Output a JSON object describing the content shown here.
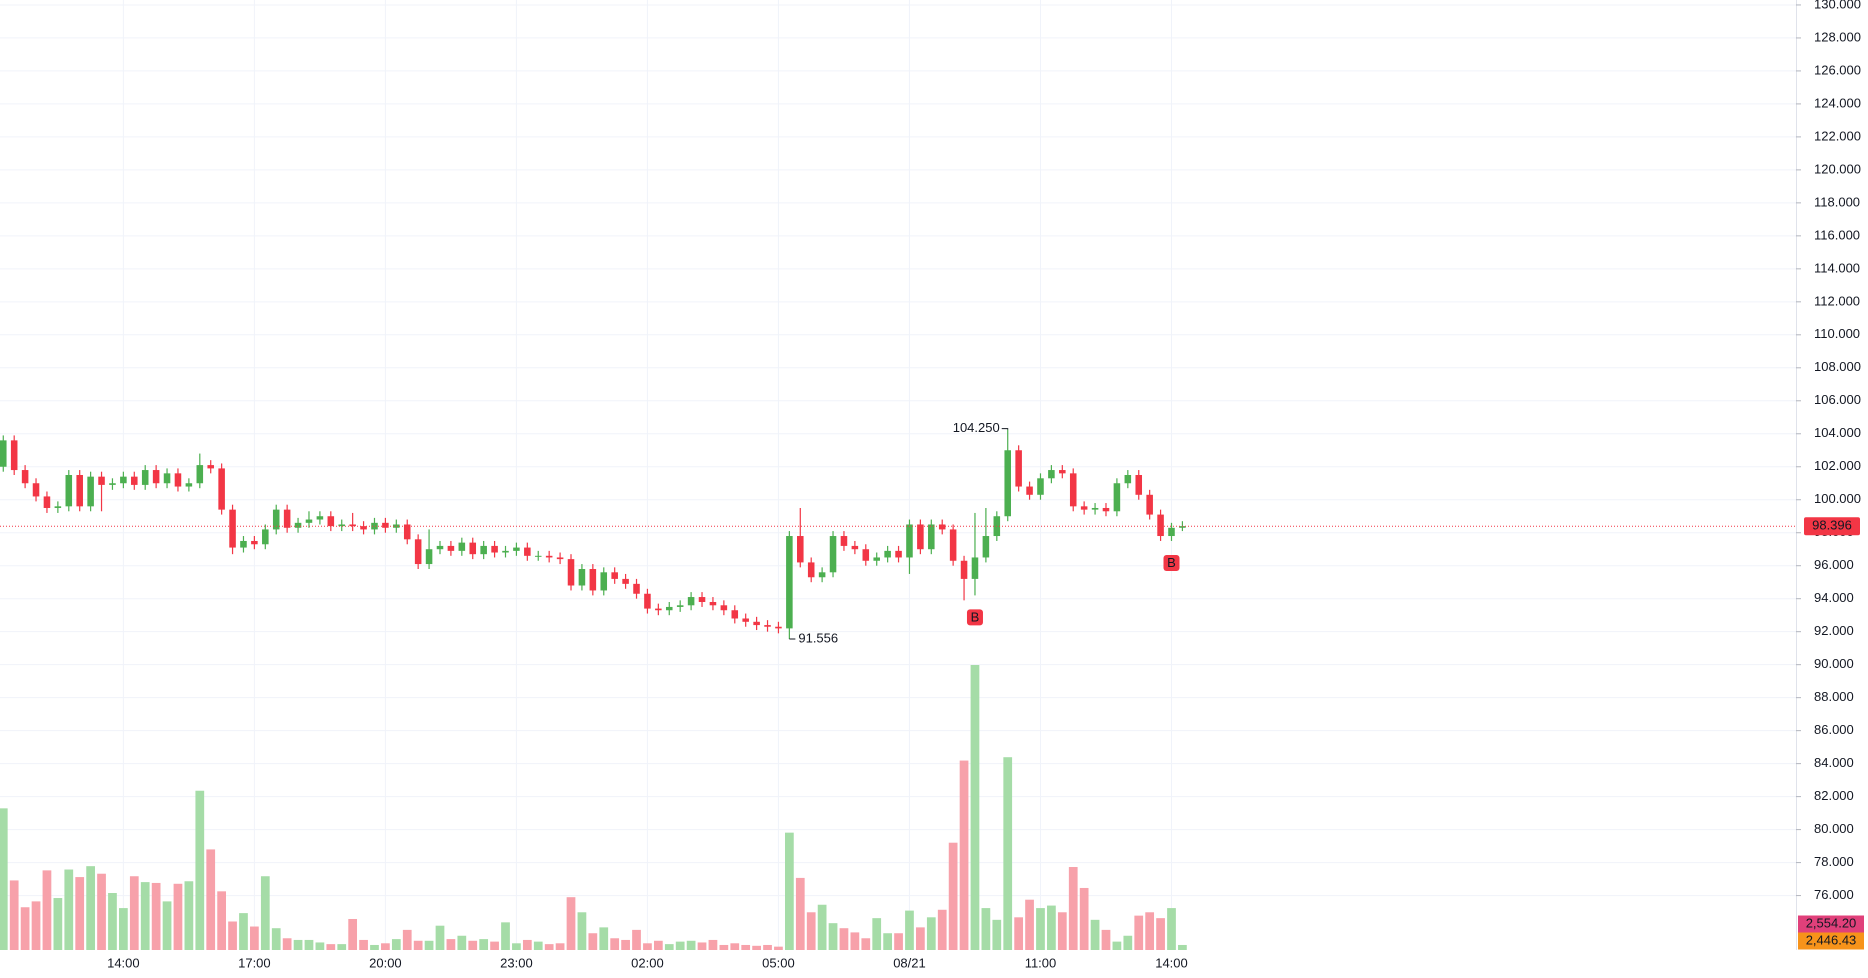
{
  "chart_data": {
    "type": "candlestick",
    "open": [
      102.0,
      103.6,
      101.8,
      101.0,
      100.2,
      99.5,
      99.6,
      101.5,
      99.6,
      101.4,
      100.9,
      101.0,
      101.4,
      100.9,
      101.8,
      101.0,
      101.6,
      100.8,
      101.0,
      102.1,
      101.9,
      99.4,
      97.1,
      97.5,
      97.3,
      98.2,
      99.4,
      98.3,
      98.6,
      98.8,
      99.0,
      98.4,
      98.5,
      98.4,
      98.2,
      98.6,
      98.3,
      98.5,
      97.6,
      96.1,
      97.0,
      97.2,
      96.9,
      97.4,
      96.7,
      97.2,
      96.8,
      96.9,
      97.1,
      96.6,
      96.6,
      96.5,
      96.4,
      94.8,
      95.8,
      94.5,
      95.6,
      95.2,
      94.9,
      94.3,
      93.4,
      93.3,
      93.5,
      93.6,
      94.1,
      93.8,
      93.6,
      93.3,
      92.8,
      92.6,
      92.4,
      92.3,
      92.2,
      97.8,
      96.2,
      95.3,
      95.6,
      97.8,
      97.2,
      97.0,
      96.3,
      96.5,
      96.9,
      96.5,
      98.5,
      97.0,
      98.5,
      98.2,
      96.3,
      95.2,
      96.5,
      97.8,
      99.0,
      103.0,
      100.8,
      100.3,
      101.3,
      101.8,
      101.6,
      99.6,
      99.4,
      99.5,
      99.3,
      101.0,
      101.5,
      100.3,
      99.1,
      97.8,
      98.3
    ],
    "high": [
      103.9,
      103.9,
      102.1,
      101.3,
      100.5,
      99.9,
      101.8,
      101.8,
      101.7,
      101.7,
      101.3,
      101.7,
      101.7,
      102.1,
      102.1,
      101.9,
      101.9,
      101.3,
      102.8,
      102.4,
      102.2,
      99.7,
      97.8,
      97.8,
      98.5,
      99.7,
      99.7,
      98.9,
      99.3,
      99.3,
      99.3,
      98.8,
      99.2,
      98.7,
      98.9,
      98.9,
      98.8,
      98.8,
      97.9,
      98.2,
      97.5,
      97.5,
      97.7,
      97.7,
      97.5,
      97.5,
      97.2,
      97.4,
      97.4,
      96.9,
      96.9,
      96.8,
      96.7,
      96.1,
      96.1,
      95.9,
      95.9,
      95.5,
      95.2,
      94.6,
      93.7,
      93.8,
      93.9,
      94.4,
      94.4,
      94.1,
      93.9,
      93.6,
      93.1,
      92.9,
      92.7,
      92.6,
      98.1,
      99.5,
      96.5,
      95.9,
      98.1,
      98.1,
      97.5,
      97.3,
      96.8,
      97.2,
      97.2,
      98.8,
      98.8,
      98.8,
      98.8,
      98.5,
      96.6,
      99.2,
      99.5,
      99.3,
      104.25,
      103.3,
      101.1,
      101.6,
      102.1,
      102.1,
      101.9,
      99.9,
      99.8,
      99.8,
      101.3,
      101.8,
      101.8,
      100.6,
      99.4,
      98.6,
      98.7
    ],
    "low": [
      101.7,
      101.5,
      100.7,
      99.9,
      99.2,
      99.2,
      99.3,
      99.3,
      99.3,
      99.3,
      100.6,
      100.7,
      100.6,
      100.6,
      100.7,
      100.7,
      100.5,
      100.5,
      100.7,
      101.6,
      99.1,
      96.7,
      96.8,
      97.0,
      97.0,
      97.9,
      98.0,
      98.0,
      98.3,
      98.5,
      98.1,
      98.1,
      98.1,
      97.9,
      97.9,
      98.0,
      98.0,
      97.3,
      95.8,
      95.8,
      96.7,
      96.6,
      96.6,
      96.4,
      96.4,
      96.5,
      96.5,
      96.6,
      96.3,
      96.3,
      96.2,
      96.1,
      94.5,
      94.5,
      94.2,
      94.2,
      94.9,
      94.6,
      94.0,
      93.1,
      93.0,
      93.0,
      93.2,
      93.3,
      93.5,
      93.3,
      93.0,
      92.5,
      92.3,
      92.1,
      92.0,
      91.9,
      91.556,
      95.9,
      95.0,
      95.0,
      95.3,
      96.9,
      96.7,
      96.0,
      96.0,
      96.2,
      96.2,
      95.5,
      96.7,
      96.7,
      97.9,
      96.0,
      93.9,
      94.2,
      96.2,
      97.5,
      98.7,
      100.5,
      100.0,
      100.0,
      101.0,
      101.3,
      99.3,
      99.1,
      99.1,
      99.0,
      99.0,
      100.7,
      100.0,
      98.8,
      97.5,
      97.5,
      98.1
    ],
    "close": [
      103.6,
      101.8,
      101.0,
      100.2,
      99.5,
      99.6,
      101.5,
      99.6,
      101.4,
      100.9,
      101.0,
      101.4,
      100.9,
      101.8,
      101.0,
      101.6,
      100.8,
      101.0,
      102.1,
      101.9,
      99.4,
      97.1,
      97.5,
      97.3,
      98.2,
      99.4,
      98.3,
      98.6,
      98.8,
      99.0,
      98.4,
      98.5,
      98.4,
      98.2,
      98.6,
      98.3,
      98.5,
      97.6,
      96.1,
      97.0,
      97.2,
      96.9,
      97.4,
      96.7,
      97.2,
      96.8,
      96.9,
      97.1,
      96.6,
      96.6,
      96.5,
      96.4,
      94.8,
      95.8,
      94.5,
      95.6,
      95.2,
      94.9,
      94.3,
      93.4,
      93.3,
      93.5,
      93.6,
      94.1,
      93.8,
      93.6,
      93.3,
      92.8,
      92.6,
      92.4,
      92.3,
      92.2,
      97.8,
      96.2,
      95.3,
      95.6,
      97.8,
      97.2,
      97.0,
      96.3,
      96.5,
      96.9,
      96.5,
      98.5,
      97.0,
      98.5,
      98.2,
      96.3,
      95.2,
      96.5,
      97.8,
      99.0,
      103.0,
      100.8,
      100.3,
      101.3,
      101.8,
      101.6,
      99.6,
      99.4,
      99.5,
      99.3,
      101.0,
      101.5,
      100.3,
      99.1,
      97.8,
      98.3,
      98.4
    ],
    "volume": [
      16900,
      8300,
      5100,
      5800,
      9500,
      6200,
      9600,
      8700,
      10000,
      9100,
      6800,
      5000,
      8800,
      8100,
      8000,
      5800,
      7900,
      8200,
      19000,
      12000,
      7000,
      3400,
      4400,
      2800,
      8800,
      2600,
      1400,
      1200,
      1200,
      900,
      700,
      700,
      3700,
      1200,
      600,
      800,
      1300,
      2400,
      1100,
      1100,
      2900,
      1300,
      1700,
      1100,
      1300,
      1000,
      3300,
      800,
      1200,
      1000,
      700,
      800,
      6300,
      4500,
      2000,
      2700,
      1400,
      1200,
      2400,
      800,
      1100,
      700,
      1000,
      1100,
      900,
      1200,
      600,
      800,
      600,
      500,
      600,
      400,
      14000,
      8600,
      4500,
      5400,
      3200,
      2600,
      2100,
      1400,
      3800,
      2000,
      2000,
      4700,
      2700,
      3900,
      4800,
      12800,
      22600,
      34000,
      5000,
      3600,
      23000,
      3900,
      6000,
      5000,
      5300,
      4500,
      9900,
      7400,
      3600,
      2400,
      1000,
      1700,
      4100,
      4500,
      3800,
      5000,
      600
    ],
    "up_color": "#4caf50",
    "down_color": "#f23645",
    "volume_up_color": "#a5dca7",
    "volume_down_color": "#f7a1aa",
    "xlim": [
      -0.3,
      164.2
    ],
    "xticks": [
      {
        "value": 11,
        "label": "14:00"
      },
      {
        "value": 23,
        "label": "17:00"
      },
      {
        "value": 35,
        "label": "20:00"
      },
      {
        "value": 47,
        "label": "23:00"
      },
      {
        "value": 59,
        "label": "02:00"
      },
      {
        "value": 71,
        "label": "05:00"
      },
      {
        "value": 83,
        "label": "08/21"
      },
      {
        "value": 95,
        "label": "11:00"
      },
      {
        "value": 107,
        "label": "14:00"
      }
    ],
    "ylim": [
      72.7,
      130.3
    ],
    "yticks": [
      {
        "value": 76,
        "label": "76.000"
      },
      {
        "value": 78,
        "label": "78.000"
      },
      {
        "value": 80,
        "label": "80.000"
      },
      {
        "value": 82,
        "label": "82.000"
      },
      {
        "value": 84,
        "label": "84.000"
      },
      {
        "value": 86,
        "label": "86.000"
      },
      {
        "value": 88,
        "label": "88.000"
      },
      {
        "value": 90,
        "label": "90.000"
      },
      {
        "value": 92,
        "label": "92.000"
      },
      {
        "value": 94,
        "label": "94.000"
      },
      {
        "value": 96,
        "label": "96.000"
      },
      {
        "value": 98,
        "label": "98.000"
      },
      {
        "value": 100,
        "label": "100.000"
      },
      {
        "value": 102,
        "label": "102.000"
      },
      {
        "value": 104,
        "label": "104.000"
      },
      {
        "value": 106,
        "label": "106.000"
      },
      {
        "value": 108,
        "label": "108.000"
      },
      {
        "value": 110,
        "label": "110.000"
      },
      {
        "value": 112,
        "label": "112.000"
      },
      {
        "value": 114,
        "label": "114.000"
      },
      {
        "value": 116,
        "label": "116.000"
      },
      {
        "value": 118,
        "label": "118.000"
      },
      {
        "value": 120,
        "label": "120.000"
      },
      {
        "value": 122,
        "label": "122.000"
      },
      {
        "value": 124,
        "label": "124.000"
      },
      {
        "value": 126,
        "label": "126.000"
      },
      {
        "value": 128,
        "label": "128.000"
      },
      {
        "value": 130,
        "label": "130.000"
      }
    ],
    "grid": true,
    "last_price": {
      "value": 98.396,
      "label": "98.396",
      "color": "#f23645"
    },
    "high_marker": {
      "index": 92,
      "value": 104.25,
      "label": "104.250"
    },
    "low_marker": {
      "index": 72,
      "value": 91.556,
      "label": "91.556"
    },
    "signals": [
      {
        "index": 89,
        "text": "B"
      },
      {
        "index": 107,
        "text": "B"
      }
    ],
    "ma_labels": [
      {
        "label": "2,554.20",
        "color": "#e0407a"
      },
      {
        "label": "2,446.43",
        "color": "#f7931a"
      }
    ]
  }
}
